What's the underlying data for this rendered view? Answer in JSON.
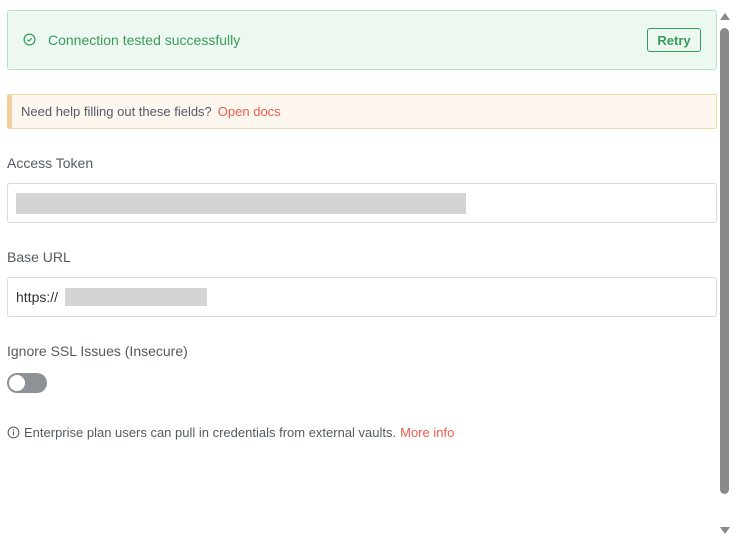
{
  "banner": {
    "message": "Connection tested successfully",
    "retry_label": "Retry",
    "icon": "check-circle-icon",
    "color": "#3a9a5c"
  },
  "help": {
    "text": "Need help filling out these fields?",
    "link": "Open docs",
    "link_color": "#ef5b50"
  },
  "fields": {
    "access_token": {
      "label": "Access Token"
    },
    "base_url": {
      "label": "Base URL",
      "value_prefix": "https://"
    },
    "ignore_ssl": {
      "label": "Ignore SSL Issues (Insecure)",
      "enabled": false
    }
  },
  "note": {
    "icon": "info-circle-icon",
    "text": "Enterprise plan users can pull in credentials from external vaults.",
    "link": "More info"
  }
}
